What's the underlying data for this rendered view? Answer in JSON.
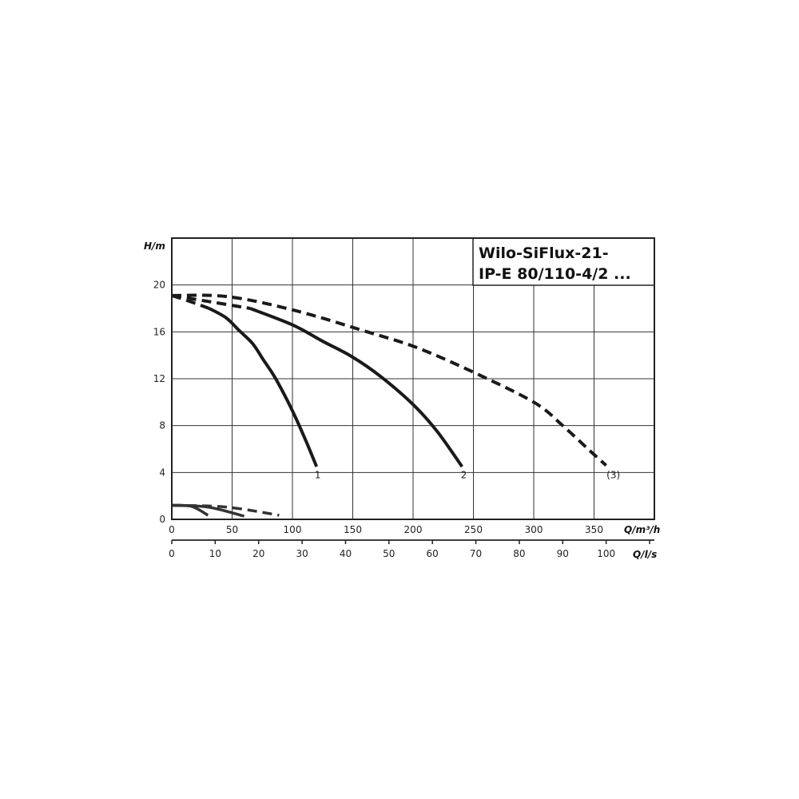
{
  "chart_data": {
    "type": "line",
    "title_lines": [
      "Wilo-SiFlux-21-",
      "IP-E 80/110-4/2 ..."
    ],
    "ylabel": "H/m",
    "xlabel": "Q/m³/h",
    "x2label": "Q/l/s",
    "xlim": [
      0,
      400
    ],
    "ylim": [
      0,
      24
    ],
    "x2lim": [
      0,
      111.1
    ],
    "xticks": [
      0,
      50,
      100,
      150,
      200,
      250,
      300,
      350
    ],
    "yticks": [
      0,
      4,
      8,
      12,
      16,
      20
    ],
    "x2ticks": [
      0,
      10,
      20,
      30,
      40,
      50,
      60,
      70,
      80,
      90,
      100
    ],
    "x2ticks_unlabeled": [
      110
    ],
    "grid": true,
    "colors": {
      "curve": "#1a1a1a",
      "low_curve": "#333333",
      "grid": "#333333"
    },
    "series": [
      {
        "name": "1",
        "style": "dashed",
        "points": [
          [
            0,
            19.1
          ],
          [
            15,
            18.6
          ],
          [
            31,
            18.0
          ]
        ]
      },
      {
        "name": "1",
        "style": "solid",
        "points": [
          [
            31,
            18.0
          ],
          [
            45,
            17.2
          ],
          [
            56,
            16.1
          ],
          [
            67,
            15.0
          ],
          [
            76,
            13.6
          ],
          [
            85,
            12.2
          ],
          [
            95,
            10.3
          ],
          [
            103,
            8.6
          ],
          [
            112,
            6.5
          ],
          [
            120,
            4.5
          ]
        ]
      },
      {
        "name": "2",
        "style": "dashed",
        "points": [
          [
            0,
            19.1
          ],
          [
            30,
            18.6
          ],
          [
            65,
            18.0
          ]
        ]
      },
      {
        "name": "2",
        "style": "solid",
        "points": [
          [
            65,
            18.0
          ],
          [
            100,
            16.6
          ],
          [
            125,
            15.2
          ],
          [
            149,
            13.9
          ],
          [
            173,
            12.2
          ],
          [
            200,
            9.8
          ],
          [
            220,
            7.5
          ],
          [
            240.6,
            4.5
          ]
        ]
      },
      {
        "name": "(3)",
        "style": "dashed",
        "points": [
          [
            0,
            19.1
          ],
          [
            47,
            19.0
          ],
          [
            103,
            17.8
          ],
          [
            162,
            16.0
          ],
          [
            202,
            14.7
          ],
          [
            247,
            12.7
          ],
          [
            300,
            10.0
          ],
          [
            324,
            8.0
          ],
          [
            345,
            6.0
          ],
          [
            360,
            4.6
          ]
        ]
      },
      {
        "name": "",
        "style": "solid",
        "points": [
          [
            0,
            1.2
          ],
          [
            16.5,
            1.1
          ],
          [
            30,
            0.35
          ]
        ]
      },
      {
        "name": "",
        "style": "solid",
        "points": [
          [
            0,
            1.2
          ],
          [
            30,
            1.05
          ],
          [
            60,
            0.27
          ]
        ]
      },
      {
        "name": "",
        "style": "dashed",
        "points": [
          [
            0,
            1.2
          ],
          [
            45,
            1.05
          ],
          [
            89,
            0.35
          ]
        ]
      }
    ],
    "curve_labels": [
      {
        "text": "1",
        "x": 121,
        "y": 3.5
      },
      {
        "text": "2",
        "x": 242,
        "y": 3.5
      },
      {
        "text": "(3)",
        "x": 366,
        "y": 3.5
      }
    ]
  }
}
